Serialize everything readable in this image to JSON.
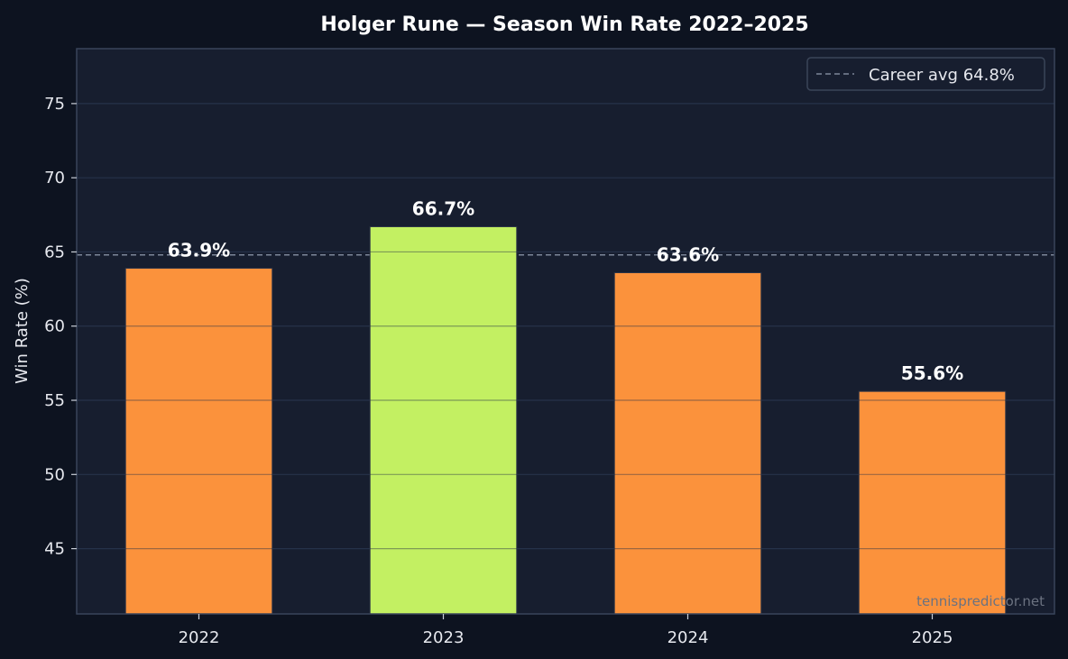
{
  "colors": {
    "page_background": "#0d1320",
    "plot_background": "#171e2f",
    "grid": "#26324a",
    "frame": "#39445a",
    "default_bar": "#fb923c",
    "highlight_bar": "#c3f062",
    "career_line": "#7d8699"
  },
  "watermark": "tennispredictor.net",
  "chart_data": {
    "type": "bar",
    "title": "Holger Rune — Season Win Rate 2022–2025",
    "xlabel": "",
    "ylabel": "Win Rate (%)",
    "categories": [
      "2022",
      "2023",
      "2024",
      "2025"
    ],
    "values": [
      63.9,
      66.7,
      63.6,
      55.6
    ],
    "value_labels": [
      "63.9%",
      "66.7%",
      "63.6%",
      "55.6%"
    ],
    "highlight_category": "2023",
    "ylim": [
      40.6,
      78.7
    ],
    "yticks": [
      45,
      50,
      55,
      60,
      65,
      70,
      75
    ],
    "grid": true,
    "reference_line": {
      "label": "Career avg 64.8%",
      "value": 64.8,
      "style": "dashed"
    },
    "legend": {
      "position": "top-right",
      "entries": [
        "Career avg 64.8%"
      ]
    }
  }
}
